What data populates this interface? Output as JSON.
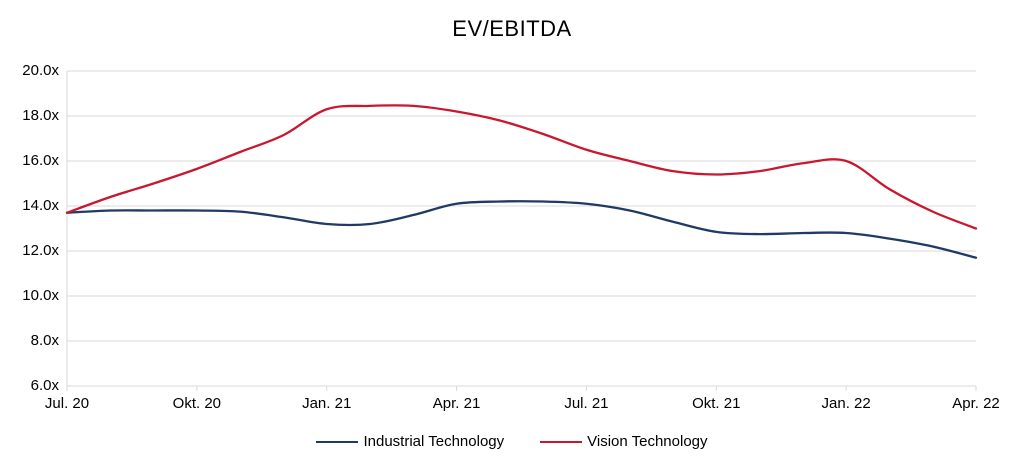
{
  "chart_data": {
    "type": "line",
    "title": "EV/EBITDA",
    "xlabel": "",
    "ylabel": "",
    "ylim": [
      6,
      20
    ],
    "grid": true,
    "legend_position": "bottom",
    "y_tick_labels": [
      "20.0x",
      "18.0x",
      "16.0x",
      "14.0x",
      "12.0x",
      "10.0x",
      "8.0x",
      "6.0x"
    ],
    "y_tick_values": [
      20,
      18,
      16,
      14,
      12,
      10,
      8,
      6
    ],
    "x_tick_labels": [
      "Jul. 20",
      "Okt. 20",
      "Jan. 21",
      "Apr. 21",
      "Jul. 21",
      "Okt. 21",
      "Jan. 22",
      "Apr. 22"
    ],
    "x_tick_indices": [
      0,
      3,
      6,
      9,
      12,
      15,
      18,
      21
    ],
    "x_months": [
      "Jul. 20",
      "Aug. 20",
      "Sep. 20",
      "Okt. 20",
      "Nov. 20",
      "Dez. 20",
      "Jan. 21",
      "Feb. 21",
      "Mär. 21",
      "Apr. 21",
      "Mai 21",
      "Jun. 21",
      "Jul. 21",
      "Aug. 21",
      "Sep. 21",
      "Okt. 21",
      "Nov. 21",
      "Dez. 21",
      "Jan. 22",
      "Feb. 22",
      "Mär. 22",
      "Apr. 22"
    ],
    "series": [
      {
        "name": "Industrial Technology",
        "color": "#1F3A64",
        "values": [
          13.7,
          13.8,
          13.8,
          13.8,
          13.75,
          13.5,
          13.2,
          13.2,
          13.6,
          14.1,
          14.2,
          14.2,
          14.1,
          13.8,
          13.3,
          12.85,
          12.75,
          12.8,
          12.8,
          12.55,
          12.2,
          11.7
        ]
      },
      {
        "name": "Vision Technology",
        "color": "#C9172F",
        "values": [
          13.7,
          14.4,
          15.0,
          15.65,
          16.4,
          17.15,
          18.3,
          18.45,
          18.45,
          18.2,
          17.8,
          17.2,
          16.5,
          16.0,
          15.55,
          15.4,
          15.55,
          15.9,
          16.0,
          14.75,
          13.75,
          13.0
        ]
      }
    ],
    "colors": {
      "gridline": "#D9D9D9",
      "axis": "#D9D9D9",
      "text": "#000000"
    }
  }
}
